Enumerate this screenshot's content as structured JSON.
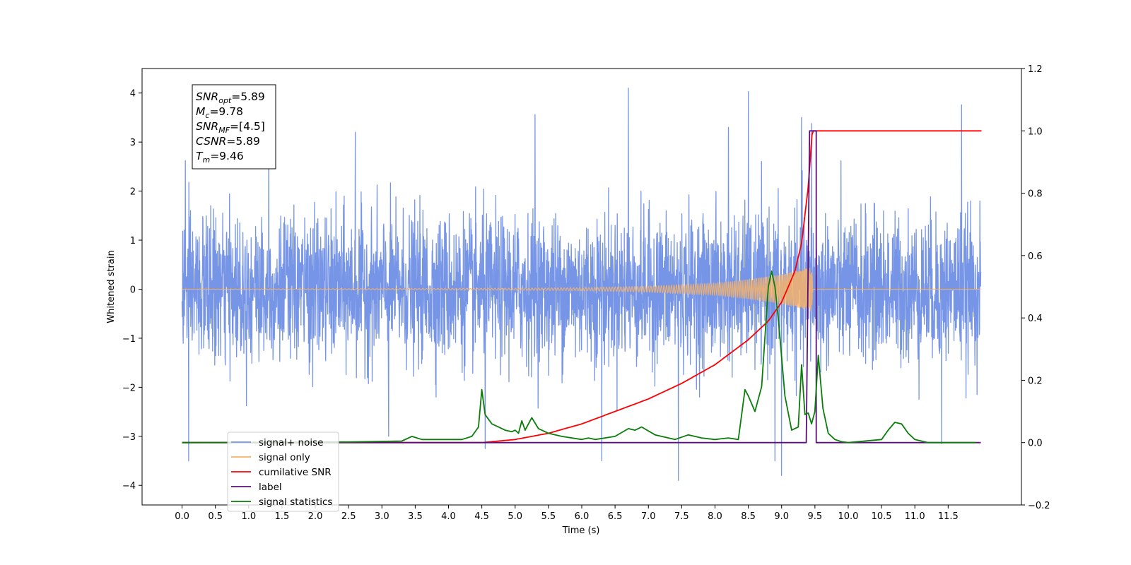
{
  "chart_data": {
    "type": "line",
    "xlabel": "Time (s)",
    "ylabel": "Whitened strain",
    "ylabel_right": "",
    "xlim": [
      -0.6,
      12.6
    ],
    "ylim": [
      -4.4,
      4.5
    ],
    "ylim_right": [
      -0.2,
      1.2
    ],
    "x_ticks": [
      0.0,
      0.5,
      1.0,
      1.5,
      2.0,
      2.5,
      3.0,
      3.5,
      4.0,
      4.5,
      5.0,
      5.5,
      6.0,
      6.5,
      7.0,
      7.5,
      8.0,
      8.5,
      9.0,
      9.5,
      10.0,
      10.5,
      11.0,
      11.5
    ],
    "x_tick_labels": [
      "0.0",
      "0.5",
      "1.0",
      "1.5",
      "2.0",
      "2.5",
      "3.0",
      "3.5",
      "4.0",
      "4.5",
      "5.0",
      "5.5",
      "6.0",
      "6.5",
      "7.0",
      "7.5",
      "8.0",
      "8.5",
      "9.0",
      "9.5",
      "10.0",
      "10.5",
      "11.0",
      "11.5"
    ],
    "y_ticks": [
      -4,
      -3,
      -2,
      -1,
      0,
      1,
      2,
      3,
      4
    ],
    "y_tick_labels": [
      "−4",
      "−3",
      "−2",
      "−1",
      "0",
      "1",
      "2",
      "3",
      "4"
    ],
    "y_right_ticks": [
      -0.2,
      0.0,
      0.2,
      0.4,
      0.6,
      0.8,
      1.0,
      1.2
    ],
    "y_right_tick_labels": [
      "−0.2",
      "0.0",
      "0.2",
      "0.4",
      "0.6",
      "0.8",
      "1.0",
      "1.2"
    ],
    "grid": false,
    "legend_position": "lower-left",
    "annotation": {
      "lines": [
        {
          "main": "SNR",
          "sub": "opt",
          "rest": "=5.89"
        },
        {
          "main": "M",
          "sub": "c",
          "rest": "=9.78"
        },
        {
          "main": "SNR",
          "sub": "MF",
          "rest": "=[4.5]"
        },
        {
          "main": "CSNR",
          "sub": "",
          "rest": "=5.89"
        },
        {
          "main": "T",
          "sub": "m",
          "rest": "=9.46"
        }
      ]
    },
    "series": [
      {
        "name": "signal+ noise",
        "color": "#7795e6",
        "axis": "left",
        "kind": "noise",
        "x_range": [
          0.0,
          11.99
        ],
        "envelope_typical": 1.9,
        "peaks": [
          [
            0.05,
            2.62
          ],
          [
            0.1,
            -3.5
          ],
          [
            1.3,
            3.36
          ],
          [
            2.6,
            3.2
          ],
          [
            3.1,
            -3.0
          ],
          [
            4.55,
            -3.25
          ],
          [
            5.3,
            3.56
          ],
          [
            6.3,
            -3.5
          ],
          [
            6.7,
            4.1
          ],
          [
            7.45,
            -3.9
          ],
          [
            8.2,
            3.3
          ],
          [
            8.5,
            4.03
          ],
          [
            8.9,
            -3.5
          ],
          [
            9.0,
            -3.8
          ],
          [
            9.3,
            3.5
          ],
          [
            9.45,
            3.38
          ],
          [
            11.4,
            -3.15
          ],
          [
            11.7,
            3.76
          ]
        ]
      },
      {
        "name": "signal only",
        "color": "#f6b36a",
        "axis": "left",
        "kind": "chirp",
        "x_range": [
          0.0,
          11.99
        ],
        "amplitude_points": [
          [
            0.0,
            0.0
          ],
          [
            5.0,
            0.02
          ],
          [
            6.0,
            0.03
          ],
          [
            7.0,
            0.06
          ],
          [
            8.0,
            0.12
          ],
          [
            8.5,
            0.2
          ],
          [
            9.0,
            0.3
          ],
          [
            9.3,
            0.4
          ],
          [
            9.45,
            0.45
          ],
          [
            9.47,
            0.0
          ],
          [
            12.0,
            0.0
          ]
        ]
      },
      {
        "name": "cumilative SNR",
        "color": "#ff0000",
        "axis": "right",
        "x": [
          0.0,
          4.5,
          5.0,
          5.5,
          6.0,
          6.5,
          7.0,
          7.5,
          8.0,
          8.5,
          8.8,
          9.0,
          9.2,
          9.3,
          9.4,
          9.46,
          9.47,
          12.0
        ],
        "y": [
          0.0,
          0.0,
          0.01,
          0.03,
          0.06,
          0.1,
          0.14,
          0.19,
          0.25,
          0.33,
          0.39,
          0.45,
          0.55,
          0.64,
          0.82,
          1.0,
          1.0,
          1.0
        ]
      },
      {
        "name": "label",
        "color": "#5c0f7a",
        "axis": "right",
        "x": [
          0.0,
          9.37,
          9.42,
          9.52,
          9.52,
          11.99
        ],
        "y": [
          0.0,
          0.0,
          1.0,
          1.0,
          0.0,
          0.0
        ]
      },
      {
        "name": "signal statistics",
        "color": "#0a7d0a",
        "axis": "right",
        "x": [
          0.0,
          2.5,
          3.3,
          3.45,
          3.6,
          4.0,
          4.2,
          4.35,
          4.45,
          4.5,
          4.55,
          4.65,
          4.75,
          4.85,
          4.95,
          5.0,
          5.05,
          5.1,
          5.15,
          5.25,
          5.35,
          5.5,
          5.7,
          6.0,
          6.1,
          6.2,
          6.5,
          6.7,
          6.8,
          6.9,
          7.1,
          7.4,
          7.6,
          7.8,
          8.0,
          8.2,
          8.35,
          8.45,
          8.5,
          8.6,
          8.7,
          8.8,
          8.85,
          8.9,
          8.95,
          9.05,
          9.15,
          9.25,
          9.3,
          9.35,
          9.4,
          9.45,
          9.5,
          9.55,
          9.62,
          9.7,
          9.8,
          9.9,
          10.0,
          10.5,
          10.6,
          10.7,
          10.8,
          10.9,
          11.0,
          11.2,
          11.92
        ],
        "y": [
          0.0,
          0.002,
          0.005,
          0.02,
          0.01,
          0.01,
          0.01,
          0.02,
          0.05,
          0.17,
          0.09,
          0.06,
          0.05,
          0.04,
          0.035,
          0.04,
          0.03,
          0.07,
          0.04,
          0.08,
          0.045,
          0.03,
          0.02,
          0.01,
          0.015,
          0.01,
          0.02,
          0.045,
          0.04,
          0.05,
          0.025,
          0.01,
          0.025,
          0.015,
          0.01,
          0.015,
          0.01,
          0.17,
          0.15,
          0.1,
          0.18,
          0.5,
          0.55,
          0.5,
          0.4,
          0.15,
          0.04,
          0.05,
          0.25,
          0.09,
          0.095,
          0.06,
          0.1,
          0.28,
          0.11,
          0.03,
          0.01,
          0.003,
          0.0,
          0.01,
          0.04,
          0.065,
          0.06,
          0.03,
          0.01,
          0.0,
          0.0
        ]
      }
    ]
  }
}
